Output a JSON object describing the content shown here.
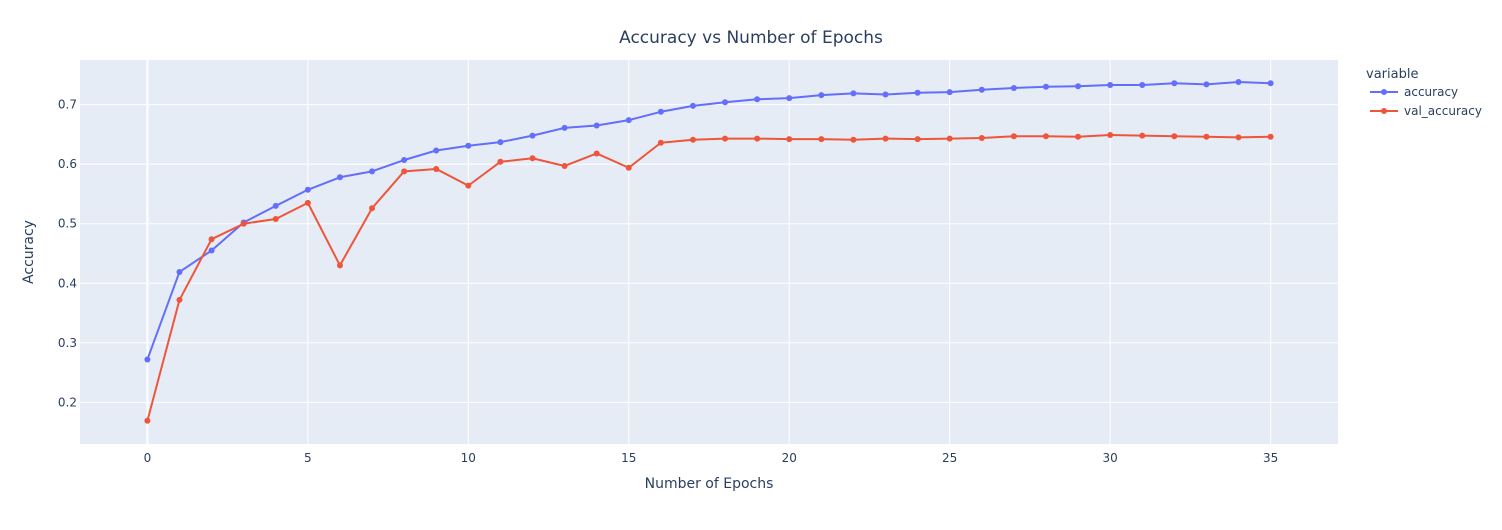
{
  "chart_data": {
    "type": "line",
    "title": "Accuracy vs Number of Epochs",
    "xlabel": "Number of Epochs",
    "ylabel": "Accuracy",
    "xlim": [
      -2.1,
      37.1
    ],
    "ylim": [
      0.13,
      0.775
    ],
    "xticks": [
      0,
      5,
      10,
      15,
      20,
      25,
      30,
      35
    ],
    "yticks": [
      0.2,
      0.3,
      0.4,
      0.5,
      0.6,
      0.7
    ],
    "legend_title": "variable",
    "legend_position": "top-right",
    "grid": true,
    "x": [
      0,
      1,
      2,
      3,
      4,
      5,
      6,
      7,
      8,
      9,
      10,
      11,
      12,
      13,
      14,
      15,
      16,
      17,
      18,
      19,
      20,
      21,
      22,
      23,
      24,
      25,
      26,
      27,
      28,
      29,
      30,
      31,
      32,
      33,
      34,
      35
    ],
    "series": [
      {
        "name": "accuracy",
        "color": "#636efa",
        "values": [
          0.272,
          0.419,
          0.455,
          0.502,
          0.53,
          0.557,
          0.578,
          0.588,
          0.607,
          0.623,
          0.631,
          0.637,
          0.648,
          0.661,
          0.665,
          0.674,
          0.688,
          0.698,
          0.704,
          0.709,
          0.711,
          0.716,
          0.719,
          0.717,
          0.72,
          0.721,
          0.725,
          0.728,
          0.73,
          0.731,
          0.733,
          0.733,
          0.736,
          0.734,
          0.738,
          0.736
        ]
      },
      {
        "name": "val_accuracy",
        "color": "#ef553b",
        "values": [
          0.169,
          0.372,
          0.474,
          0.5,
          0.508,
          0.535,
          0.43,
          0.526,
          0.588,
          0.592,
          0.564,
          0.604,
          0.61,
          0.597,
          0.618,
          0.594,
          0.636,
          0.641,
          0.643,
          0.643,
          0.642,
          0.642,
          0.641,
          0.643,
          0.642,
          0.643,
          0.644,
          0.647,
          0.647,
          0.646,
          0.649,
          0.648,
          0.647,
          0.646,
          0.645,
          0.646
        ]
      }
    ]
  }
}
